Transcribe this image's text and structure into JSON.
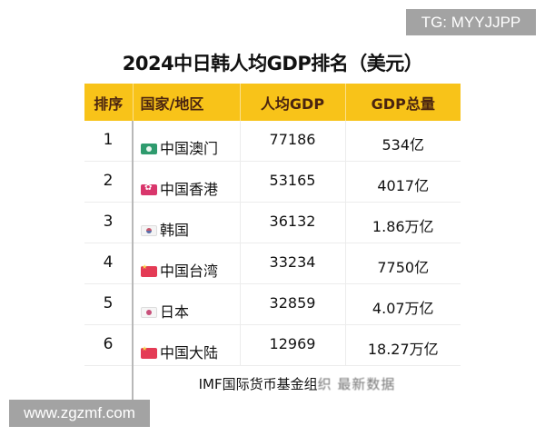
{
  "watermarks": {
    "top_right": "TG: MYYJJPP",
    "bottom_left": "www.zgzmf.com"
  },
  "title": "2024中日韩人均GDP排名（美元）",
  "table": {
    "headers": [
      "排序",
      "国家/地区",
      "人均GDP",
      "GDP总量"
    ],
    "rows": [
      {
        "rank": "1",
        "flag": "macau-flag-icon",
        "name": "中国澳门",
        "gdp_per_capita": "77186",
        "gdp_total": "534亿"
      },
      {
        "rank": "2",
        "flag": "hong-kong-flag-icon",
        "name": "中国香港",
        "gdp_per_capita": "53165",
        "gdp_total": "4017亿"
      },
      {
        "rank": "3",
        "flag": "south-korea-flag-icon",
        "name": "韩国",
        "gdp_per_capita": "36132",
        "gdp_total": "1.86万亿"
      },
      {
        "rank": "4",
        "flag": "china-flag-icon",
        "name": "中国台湾",
        "gdp_per_capita": "33234",
        "gdp_total": "7750亿"
      },
      {
        "rank": "5",
        "flag": "japan-flag-icon",
        "name": "日本",
        "gdp_per_capita": "32859",
        "gdp_total": "4.07万亿"
      },
      {
        "rank": "6",
        "flag": "china-flag-icon",
        "name": "中国大陆",
        "gdp_per_capita": "12969",
        "gdp_total": "18.27万亿"
      }
    ],
    "source_visible": "IMF国际货币基金组",
    "source_obscured": "织 最新数据"
  },
  "colors": {
    "header_bg": "#f8c319",
    "header_text": "#4a2410",
    "watermark_bg": "#a3a3a3"
  }
}
